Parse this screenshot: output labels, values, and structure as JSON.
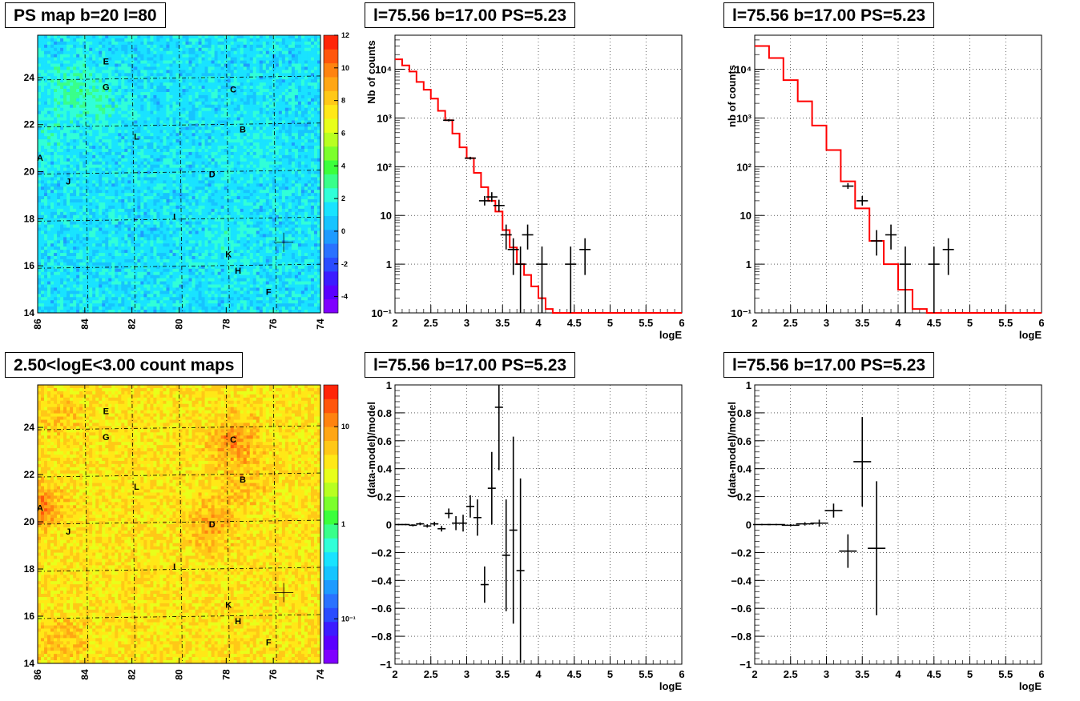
{
  "titles": {
    "ps_map": "PS map b=20 l=80",
    "count_map": "2.50<logE<3.00 count maps",
    "p1": "l=75.56 b=17.00 PS=5.23",
    "p2": "l=75.56 b=17.00 PS=5.23",
    "p3": "l=75.56 b=17.00 PS=5.23",
    "p4": "l=75.56 b=17.00 PS=5.23"
  },
  "chart_data": [
    {
      "type": "heatmap",
      "id": "ps_map",
      "title": "PS map b=20 l=80",
      "xlim": [
        86,
        74
      ],
      "ylim": [
        14,
        25.8
      ],
      "x_ticks": [
        "86",
        "84",
        "82",
        "80",
        "78",
        "76",
        "74"
      ],
      "y_ticks": [
        "14",
        "16",
        "18",
        "20",
        "22",
        "24"
      ],
      "colorbar": {
        "min": -5,
        "max": 12,
        "ticks": [
          "-4",
          "-2",
          "0",
          "2",
          "4",
          "6",
          "8",
          "10",
          "12"
        ]
      },
      "sources": [
        {
          "label": "E",
          "l": 83.1,
          "b": 24.7
        },
        {
          "label": "G",
          "l": 83.1,
          "b": 23.6
        },
        {
          "label": "C",
          "l": 77.7,
          "b": 23.5
        },
        {
          "label": "L",
          "l": 81.8,
          "b": 21.5
        },
        {
          "label": "B",
          "l": 77.3,
          "b": 21.8
        },
        {
          "label": "A",
          "l": 85.9,
          "b": 20.6
        },
        {
          "label": "J",
          "l": 84.7,
          "b": 19.6
        },
        {
          "label": "D",
          "l": 78.6,
          "b": 19.9
        },
        {
          "label": "I",
          "l": 80.2,
          "b": 18.1
        },
        {
          "label": "K",
          "l": 77.9,
          "b": 16.5
        },
        {
          "label": "H",
          "l": 77.5,
          "b": 15.8
        },
        {
          "label": "F",
          "l": 76.2,
          "b": 14.9
        }
      ],
      "marker": {
        "l": 75.56,
        "b": 17.0
      }
    },
    {
      "type": "heatmap",
      "id": "count_map",
      "title": "2.50<logE<3.00 count maps",
      "xlim": [
        86,
        74
      ],
      "ylim": [
        14,
        25.8
      ],
      "x_ticks": [
        "86",
        "84",
        "82",
        "80",
        "78",
        "76",
        "74"
      ],
      "y_ticks": [
        "14",
        "16",
        "18",
        "20",
        "22",
        "24"
      ],
      "colorbar": {
        "log": true,
        "ticks": [
          "10",
          "1",
          "10⁻¹"
        ]
      },
      "sources": [
        {
          "label": "E",
          "l": 83.1,
          "b": 24.7
        },
        {
          "label": "G",
          "l": 83.1,
          "b": 23.6
        },
        {
          "label": "C",
          "l": 77.7,
          "b": 23.5
        },
        {
          "label": "L",
          "l": 81.8,
          "b": 21.5
        },
        {
          "label": "B",
          "l": 77.3,
          "b": 21.8
        },
        {
          "label": "A",
          "l": 85.9,
          "b": 20.6
        },
        {
          "label": "J",
          "l": 84.7,
          "b": 19.6
        },
        {
          "label": "D",
          "l": 78.6,
          "b": 19.9
        },
        {
          "label": "I",
          "l": 80.2,
          "b": 18.1
        },
        {
          "label": "K",
          "l": 77.9,
          "b": 16.5
        },
        {
          "label": "H",
          "l": 77.5,
          "b": 15.8
        },
        {
          "label": "F",
          "l": 76.2,
          "b": 14.9
        }
      ],
      "marker": {
        "l": 75.56,
        "b": 17.0
      }
    },
    {
      "type": "line",
      "id": "p1",
      "title": "l=75.56 b=17.00 PS=5.23",
      "xlabel": "logE",
      "ylabel": "Nb of counts",
      "xlim": [
        2,
        6
      ],
      "ylim": [
        0.1,
        50000
      ],
      "log_y": true,
      "x_ticks": [
        "2",
        "2.5",
        "3",
        "3.5",
        "4",
        "4.5",
        "5",
        "5.5",
        "6"
      ],
      "y_ticks": [
        "10⁻¹",
        "1",
        "10",
        "10²",
        "10³",
        "10⁴"
      ],
      "model": {
        "color": "#ff0000",
        "edges": [
          2,
          2.1,
          2.2,
          2.3,
          2.4,
          2.5,
          2.6,
          2.7,
          2.8,
          2.9,
          3.0,
          3.1,
          3.2,
          3.3,
          3.4,
          3.5,
          3.6,
          3.7,
          3.8,
          3.9,
          4.0,
          4.1,
          4.2,
          6.0
        ],
        "values": [
          16000,
          12000,
          9000,
          5500,
          3800,
          2500,
          1400,
          900,
          480,
          250,
          150,
          75,
          38,
          20,
          12,
          5,
          2.2,
          1.0,
          0.6,
          0.35,
          0.2,
          0.12,
          0.1
        ]
      },
      "data": [
        {
          "x": 2.75,
          "y": 900,
          "lo": 850,
          "hi": 950
        },
        {
          "x": 3.05,
          "y": 150,
          "lo": 140,
          "hi": 160
        },
        {
          "x": 3.25,
          "y": 20,
          "lo": 16,
          "hi": 25
        },
        {
          "x": 3.35,
          "y": 24,
          "lo": 19,
          "hi": 30
        },
        {
          "x": 3.45,
          "y": 16,
          "lo": 12,
          "hi": 21
        },
        {
          "x": 3.55,
          "y": 4,
          "lo": 2,
          "hi": 6.5
        },
        {
          "x": 3.65,
          "y": 2,
          "lo": 0.6,
          "hi": 3.4
        },
        {
          "x": 3.75,
          "y": 1,
          "lo": 0.1,
          "hi": 2.3
        },
        {
          "x": 3.85,
          "y": 4,
          "lo": 2,
          "hi": 6.5
        },
        {
          "x": 4.05,
          "y": 1,
          "lo": 0.1,
          "hi": 2.3
        },
        {
          "x": 4.45,
          "y": 1,
          "lo": 0.1,
          "hi": 2.3
        },
        {
          "x": 4.65,
          "y": 2,
          "lo": 0.6,
          "hi": 3.4
        }
      ]
    },
    {
      "type": "line",
      "id": "p2",
      "title": "l=75.56 b=17.00 PS=5.23",
      "xlabel": "logE",
      "ylabel": "nb of counts",
      "xlim": [
        2,
        6
      ],
      "ylim": [
        0.1,
        50000
      ],
      "log_y": true,
      "x_ticks": [
        "2",
        "2.5",
        "3",
        "3.5",
        "4",
        "4.5",
        "5",
        "5.5",
        "6"
      ],
      "y_ticks": [
        "10⁻¹",
        "1",
        "10",
        "10²",
        "10³",
        "10⁴"
      ],
      "model": {
        "color": "#ff0000",
        "edges": [
          2,
          2.2,
          2.4,
          2.6,
          2.8,
          3.0,
          3.2,
          3.4,
          3.6,
          3.8,
          4.0,
          4.2,
          4.4,
          6.0
        ],
        "values": [
          30000,
          17000,
          6000,
          2200,
          700,
          220,
          50,
          14,
          3,
          1,
          0.3,
          0.12,
          0.1
        ]
      },
      "data": [
        {
          "x": 3.3,
          "y": 40,
          "lo": 35,
          "hi": 46
        },
        {
          "x": 3.5,
          "y": 20,
          "lo": 16,
          "hi": 25
        },
        {
          "x": 3.7,
          "y": 3,
          "lo": 1.5,
          "hi": 5
        },
        {
          "x": 3.9,
          "y": 4,
          "lo": 2,
          "hi": 6.5
        },
        {
          "x": 4.1,
          "y": 1,
          "lo": 0.1,
          "hi": 2.3
        },
        {
          "x": 4.5,
          "y": 1,
          "lo": 0.1,
          "hi": 2.3
        },
        {
          "x": 4.7,
          "y": 2,
          "lo": 0.6,
          "hi": 3.4
        }
      ]
    },
    {
      "type": "scatter",
      "id": "p3",
      "title": "l=75.56 b=17.00 PS=5.23",
      "xlabel": "logE",
      "ylabel": "(data-model)/model",
      "xlim": [
        2,
        6
      ],
      "ylim": [
        -1,
        1
      ],
      "x_ticks": [
        "2",
        "2.5",
        "3",
        "3.5",
        "4",
        "4.5",
        "5",
        "5.5",
        "6"
      ],
      "y_ticks": [
        "−1",
        "−0.8",
        "−0.6",
        "−0.4",
        "−0.2",
        "0",
        "0.2",
        "0.4",
        "0.6",
        "0.8",
        "1"
      ],
      "data": [
        {
          "x": 2.05,
          "y": 0,
          "e": 0.005
        },
        {
          "x": 2.15,
          "y": 0,
          "e": 0.005
        },
        {
          "x": 2.25,
          "y": -0.005,
          "e": 0.008
        },
        {
          "x": 2.35,
          "y": 0.005,
          "e": 0.01
        },
        {
          "x": 2.45,
          "y": -0.01,
          "e": 0.012
        },
        {
          "x": 2.55,
          "y": 0.005,
          "e": 0.015
        },
        {
          "x": 2.65,
          "y": -0.03,
          "e": 0.02
        },
        {
          "x": 2.75,
          "y": 0.08,
          "e": 0.035
        },
        {
          "x": 2.85,
          "y": 0.01,
          "e": 0.05
        },
        {
          "x": 2.95,
          "y": 0.01,
          "e": 0.06
        },
        {
          "x": 3.05,
          "y": 0.13,
          "e": 0.08
        },
        {
          "x": 3.15,
          "y": 0.05,
          "e": 0.13
        },
        {
          "x": 3.25,
          "y": -0.43,
          "e": 0.13
        },
        {
          "x": 3.35,
          "y": 0.26,
          "e": 0.26
        },
        {
          "x": 3.45,
          "y": 0.84,
          "e": 0.45
        },
        {
          "x": 3.55,
          "y": -0.22,
          "e": 0.4
        },
        {
          "x": 3.65,
          "y": -0.04,
          "e": 0.67
        },
        {
          "x": 3.75,
          "y": -0.33,
          "e": 0.66
        }
      ]
    },
    {
      "type": "scatter",
      "id": "p4",
      "title": "l=75.56 b=17.00 PS=5.23",
      "xlabel": "logE",
      "ylabel": "(data-model)/model",
      "xlim": [
        2,
        6
      ],
      "ylim": [
        -1,
        1
      ],
      "x_ticks": [
        "2",
        "2.5",
        "3",
        "3.5",
        "4",
        "4.5",
        "5",
        "5.5",
        "6"
      ],
      "y_ticks": [
        "−1",
        "−0.8",
        "−0.6",
        "−0.4",
        "−0.2",
        "0",
        "0.2",
        "0.4",
        "0.6",
        "0.8",
        "1"
      ],
      "data": [
        {
          "x": 2.1,
          "y": 0,
          "e": 0.005
        },
        {
          "x": 2.3,
          "y": 0,
          "e": 0.005
        },
        {
          "x": 2.5,
          "y": -0.005,
          "e": 0.008
        },
        {
          "x": 2.7,
          "y": 0.005,
          "e": 0.012
        },
        {
          "x": 2.9,
          "y": 0.01,
          "e": 0.025
        },
        {
          "x": 3.1,
          "y": 0.1,
          "e": 0.05
        },
        {
          "x": 3.3,
          "y": -0.19,
          "e": 0.12
        },
        {
          "x": 3.5,
          "y": 0.45,
          "e": 0.32
        },
        {
          "x": 3.7,
          "y": -0.17,
          "e": 0.48
        }
      ]
    }
  ]
}
